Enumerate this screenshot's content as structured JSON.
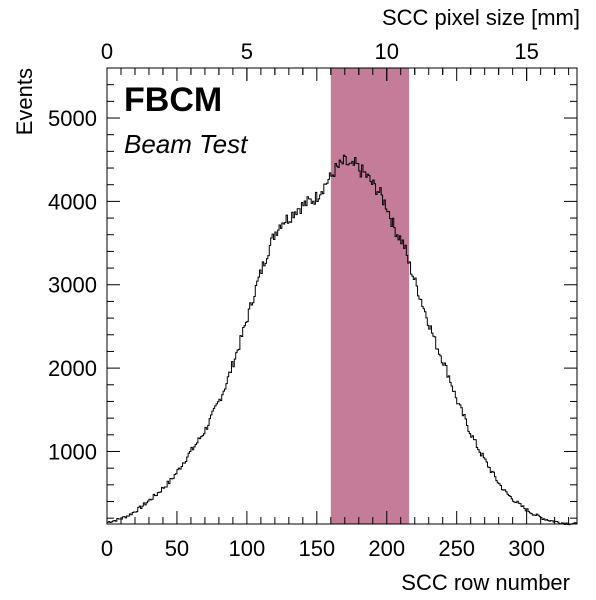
{
  "chart_data": {
    "type": "histogram",
    "title": "FBCM",
    "subtitle": "Beam Test",
    "xlabel": "SCC row number",
    "ylabel": "Events",
    "x2label": "SCC pixel size [mm]",
    "xlim": [
      0,
      336
    ],
    "ylim": [
      130,
      5600
    ],
    "x2lim": [
      0,
      16.8
    ],
    "xticks": [
      0,
      50,
      100,
      150,
      200,
      250,
      300
    ],
    "x2ticks": [
      0,
      5,
      10,
      15
    ],
    "yticks": [
      1000,
      2000,
      3000,
      4000,
      5000
    ],
    "highlight_band": {
      "x_start": 160,
      "x_end": 216,
      "color": "#c47c98"
    },
    "line_color": "#000000",
    "series": [
      {
        "x": [
          0,
          5,
          10,
          15,
          20,
          25,
          30,
          35,
          40,
          45,
          50,
          55,
          60,
          65,
          70,
          75,
          80,
          85,
          90,
          95,
          100,
          105,
          110,
          115,
          120,
          125,
          130,
          135,
          140,
          145,
          150,
          152,
          155,
          158,
          160,
          163,
          165,
          168,
          170,
          173,
          175,
          178,
          180,
          183,
          185,
          188,
          190,
          193,
          195,
          198,
          200,
          203,
          205,
          208,
          210,
          213,
          215,
          220,
          225,
          230,
          235,
          240,
          245,
          250,
          255,
          260,
          265,
          270,
          275,
          280,
          285,
          290,
          295,
          300,
          305,
          310,
          315,
          320,
          325,
          330,
          336
        ],
        "values": [
          150,
          170,
          195,
          230,
          280,
          340,
          410,
          480,
          560,
          640,
          750,
          880,
          1000,
          1120,
          1250,
          1420,
          1600,
          1800,
          2050,
          2300,
          2580,
          2880,
          3150,
          3400,
          3620,
          3760,
          3800,
          3900,
          3950,
          4000,
          4050,
          4120,
          4180,
          4250,
          4280,
          4380,
          4400,
          4450,
          4480,
          4430,
          4400,
          4450,
          4380,
          4350,
          4320,
          4250,
          4200,
          4150,
          4100,
          4000,
          3950,
          3800,
          3700,
          3600,
          3550,
          3450,
          3300,
          3050,
          2800,
          2550,
          2300,
          2100,
          1880,
          1620,
          1420,
          1220,
          1050,
          900,
          760,
          620,
          510,
          430,
          360,
          300,
          250,
          210,
          180,
          160,
          145,
          135,
          130
        ]
      }
    ]
  }
}
